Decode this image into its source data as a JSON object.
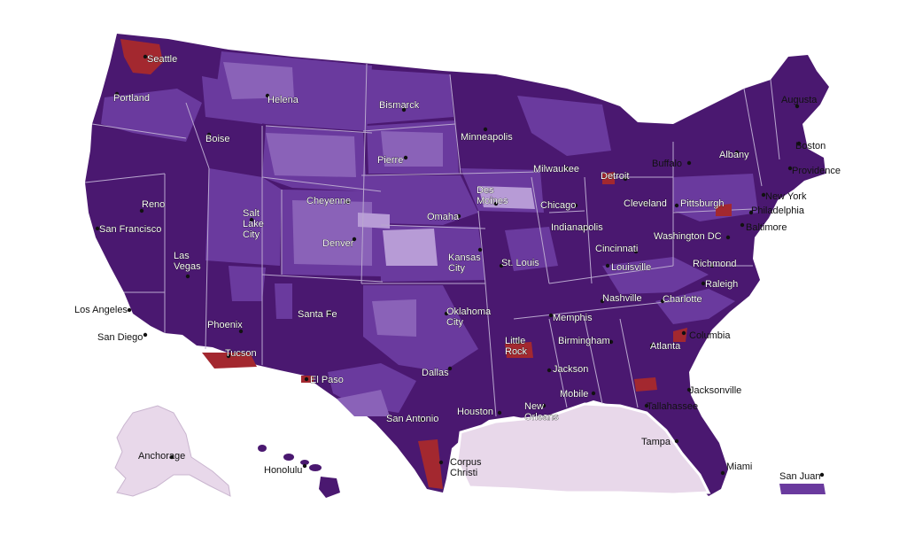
{
  "colors": {
    "dark_purple": "#4a1870",
    "mid_purple": "#6a3a9e",
    "light_purple": "#8a62b8",
    "pale_purple": "#b79bd6",
    "alaska_fill": "#e8d8ea",
    "red_region": "#a3282f",
    "state_border": "#b9a7cf"
  },
  "cities": [
    {
      "name": "Seattle"
    },
    {
      "name": "Portland"
    },
    {
      "name": "Helena"
    },
    {
      "name": "Bismarck"
    },
    {
      "name": "Augusta"
    },
    {
      "name": "Boise"
    },
    {
      "name": "Minneapolis"
    },
    {
      "name": "Boston"
    },
    {
      "name": "Pierre"
    },
    {
      "name": "Albany"
    },
    {
      "name": "Buffalo"
    },
    {
      "name": "Milwaukee"
    },
    {
      "name": "Detroit"
    },
    {
      "name": "Providence"
    },
    {
      "name": "Des Moines"
    },
    {
      "name": "Cheyenne"
    },
    {
      "name": "New York"
    },
    {
      "name": "Reno"
    },
    {
      "name": "Chicago"
    },
    {
      "name": "Cleveland"
    },
    {
      "name": "Pittsburgh"
    },
    {
      "name": "Philadelphia"
    },
    {
      "name": "Omaha"
    },
    {
      "name": "Salt Lake City"
    },
    {
      "name": "San Francisco"
    },
    {
      "name": "Baltimore"
    },
    {
      "name": "Indianapolis"
    },
    {
      "name": "Denver"
    },
    {
      "name": "Washington DC"
    },
    {
      "name": "Kansas City"
    },
    {
      "name": "Cincinnati"
    },
    {
      "name": "Las Vegas"
    },
    {
      "name": "St. Louis"
    },
    {
      "name": "Louisville"
    },
    {
      "name": "Richmond"
    },
    {
      "name": "Raleigh"
    },
    {
      "name": "Nashville"
    },
    {
      "name": "Charlotte"
    },
    {
      "name": "Los Angeles"
    },
    {
      "name": "Santa Fe"
    },
    {
      "name": "Oklahoma City"
    },
    {
      "name": "Memphis"
    },
    {
      "name": "San Diego"
    },
    {
      "name": "Phoenix"
    },
    {
      "name": "Columbia"
    },
    {
      "name": "Little Rock"
    },
    {
      "name": "Birmingham"
    },
    {
      "name": "Atlanta"
    },
    {
      "name": "Tucson"
    },
    {
      "name": "Dallas"
    },
    {
      "name": "Jackson"
    },
    {
      "name": "El Paso"
    },
    {
      "name": "Mobile"
    },
    {
      "name": "Jacksonville"
    },
    {
      "name": "New Orleans"
    },
    {
      "name": "Tallahassee"
    },
    {
      "name": "San Antonio"
    },
    {
      "name": "Houston"
    },
    {
      "name": "Tampa"
    },
    {
      "name": "Anchorage"
    },
    {
      "name": "Corpus Christi"
    },
    {
      "name": "Honolulu"
    },
    {
      "name": "Miami"
    },
    {
      "name": "San Juan"
    }
  ]
}
